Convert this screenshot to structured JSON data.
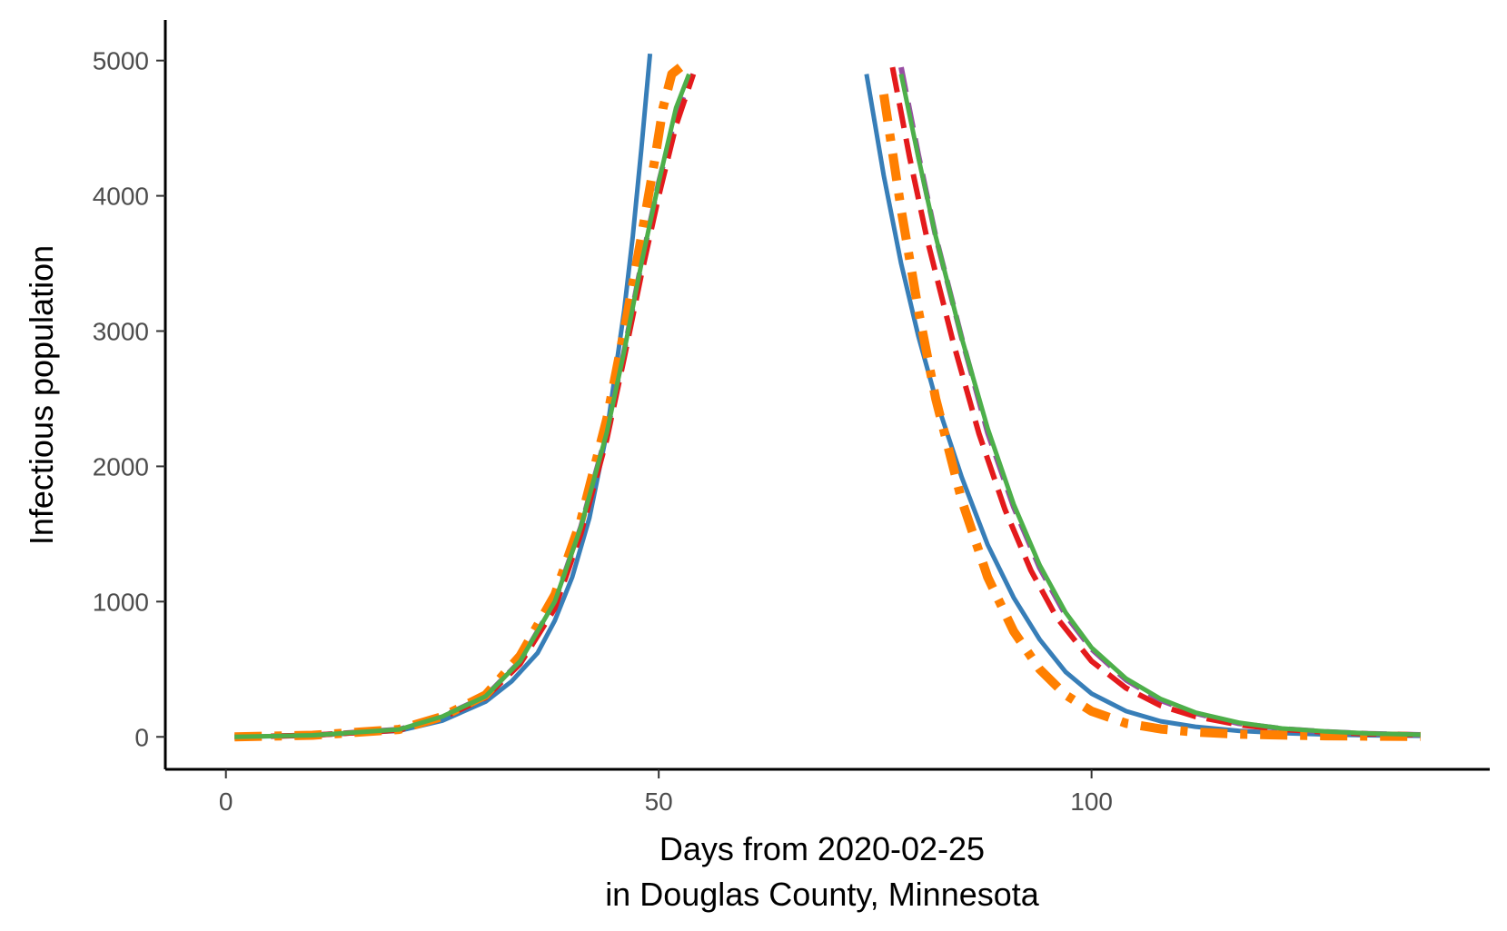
{
  "chart_data": {
    "type": "line",
    "title": "",
    "xlabel_lines": [
      "Days from 2020-02-25",
      "in Douglas County, Minnesota"
    ],
    "ylabel": "Infectious population",
    "xlim": [
      -7,
      146
    ],
    "ylim": [
      -240,
      5300
    ],
    "x_ticks": [
      0,
      50,
      100
    ],
    "y_ticks": [
      0,
      1000,
      2000,
      3000,
      4000,
      5000
    ],
    "grid": false,
    "legend": "none",
    "series": [
      {
        "color": "#377eb8",
        "dash": "solid",
        "x": [
          1,
          10,
          20,
          25,
          30,
          33,
          36,
          38,
          40,
          42,
          44,
          46,
          47,
          48,
          49,
          74,
          76,
          78,
          80,
          82,
          85,
          88,
          91,
          94,
          97,
          100,
          104,
          108,
          112,
          117,
          122,
          127,
          132,
          138
        ],
        "y": [
          0,
          10,
          45,
          120,
          260,
          410,
          620,
          860,
          1180,
          1620,
          2250,
          3150,
          3700,
          4350,
          5050,
          4900,
          4150,
          3500,
          2960,
          2500,
          1920,
          1420,
          1030,
          720,
          480,
          320,
          190,
          115,
          75,
          45,
          28,
          18,
          12,
          8
        ]
      },
      {
        "color": "#984ea3",
        "dash": "dashed",
        "x": [
          1,
          10,
          20,
          25,
          30,
          34,
          38,
          41,
          44,
          46,
          48,
          50,
          52,
          54,
          78,
          80,
          82,
          85,
          88,
          91,
          94,
          97,
          100,
          104,
          108,
          112,
          117,
          122,
          127,
          132,
          138
        ],
        "y": [
          0,
          12,
          55,
          150,
          300,
          560,
          1000,
          1550,
          2250,
          2850,
          3500,
          4100,
          4600,
          4900,
          4950,
          4300,
          3700,
          2950,
          2250,
          1700,
          1250,
          900,
          650,
          420,
          270,
          175,
          100,
          60,
          38,
          24,
          15
        ]
      },
      {
        "color": "#e41a1c",
        "dash": "dashed",
        "x": [
          1,
          10,
          20,
          25,
          30,
          34,
          38,
          41,
          44,
          46,
          48,
          50,
          52,
          54,
          77,
          79,
          81,
          84,
          87,
          90,
          93,
          96,
          100,
          104,
          108,
          112,
          117,
          122,
          127,
          132,
          138
        ],
        "y": [
          0,
          12,
          50,
          140,
          290,
          540,
          950,
          1500,
          2200,
          2800,
          3420,
          4000,
          4520,
          4900,
          4950,
          4280,
          3680,
          2920,
          2240,
          1680,
          1230,
          880,
          560,
          360,
          230,
          150,
          90,
          55,
          35,
          22,
          14
        ]
      },
      {
        "color": "#ff7f00",
        "dash": "dashdot",
        "x": [
          1,
          10,
          20,
          25,
          30,
          34,
          38,
          41,
          44,
          46,
          48,
          49.5,
          50.5,
          51.5,
          52.5,
          76,
          78,
          80,
          82,
          85,
          88,
          91,
          94,
          97,
          100,
          104,
          108,
          112,
          117,
          122,
          127,
          132,
          138
        ],
        "y": [
          0,
          12,
          55,
          150,
          310,
          600,
          1050,
          1600,
          2350,
          3000,
          3700,
          4250,
          4650,
          4900,
          4950,
          4750,
          3900,
          3150,
          2500,
          1750,
          1180,
          780,
          500,
          310,
          190,
          100,
          58,
          35,
          20,
          13,
          8,
          5,
          3
        ]
      },
      {
        "color": "#4daf4a",
        "dash": "solid",
        "x": [
          1,
          10,
          20,
          25,
          30,
          34,
          38,
          41,
          44,
          46,
          48,
          50,
          52,
          53.5,
          78,
          80,
          82,
          85,
          88,
          91,
          94,
          97,
          100,
          104,
          108,
          112,
          117,
          122,
          127,
          132,
          138
        ],
        "y": [
          0,
          12,
          55,
          150,
          300,
          560,
          1000,
          1550,
          2250,
          2850,
          3500,
          4100,
          4650,
          4900,
          4900,
          4280,
          3700,
          2950,
          2280,
          1720,
          1270,
          920,
          660,
          430,
          280,
          180,
          105,
          62,
          40,
          25,
          16
        ]
      }
    ]
  }
}
